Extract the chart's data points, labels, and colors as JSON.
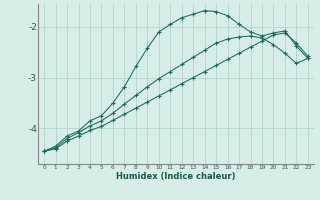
{
  "xlabel": "Humidex (Indice chaleur)",
  "ylabel": "",
  "bg_color": "#d7ede8",
  "grid_color": "#b8d8d0",
  "line_color": "#1a6b5a",
  "xlim": [
    -0.5,
    23.5
  ],
  "ylim": [
    -4.7,
    -1.55
  ],
  "yticks": [
    -4,
    -3,
    -2
  ],
  "xticks": [
    0,
    1,
    2,
    3,
    4,
    5,
    6,
    7,
    8,
    9,
    10,
    11,
    12,
    13,
    14,
    15,
    16,
    17,
    18,
    19,
    20,
    21,
    22,
    23
  ],
  "curve1_x": [
    0,
    1,
    2,
    3,
    4,
    5,
    6,
    7,
    8,
    9,
    10,
    11,
    12,
    13,
    14,
    15,
    16,
    17,
    18,
    19,
    20,
    21,
    22,
    23
  ],
  "curve1_y": [
    -4.45,
    -4.35,
    -4.15,
    -4.05,
    -3.85,
    -3.75,
    -3.5,
    -3.18,
    -2.78,
    -2.42,
    -2.1,
    -1.95,
    -1.82,
    -1.75,
    -1.68,
    -1.7,
    -1.78,
    -1.95,
    -2.1,
    -2.18,
    -2.12,
    -2.08,
    -2.38,
    -2.62
  ],
  "curve2_x": [
    0,
    1,
    2,
    3,
    4,
    5,
    6,
    7,
    8,
    9,
    10,
    11,
    12,
    13,
    14,
    15,
    16,
    17,
    18,
    19,
    20,
    21,
    22,
    23
  ],
  "curve2_y": [
    -4.45,
    -4.38,
    -4.2,
    -4.08,
    -3.95,
    -3.85,
    -3.7,
    -3.52,
    -3.35,
    -3.18,
    -3.02,
    -2.88,
    -2.74,
    -2.6,
    -2.46,
    -2.32,
    -2.24,
    -2.2,
    -2.18,
    -2.22,
    -2.35,
    -2.52,
    -2.72,
    -2.62
  ],
  "curve3_x": [
    0,
    1,
    2,
    3,
    4,
    5,
    6,
    7,
    8,
    9,
    10,
    11,
    12,
    13,
    14,
    15,
    16,
    17,
    18,
    19,
    20,
    21,
    22,
    23
  ],
  "curve3_y": [
    -4.45,
    -4.4,
    -4.25,
    -4.15,
    -4.04,
    -3.96,
    -3.84,
    -3.72,
    -3.6,
    -3.48,
    -3.36,
    -3.24,
    -3.12,
    -3.0,
    -2.88,
    -2.76,
    -2.64,
    -2.52,
    -2.4,
    -2.28,
    -2.16,
    -2.12,
    -2.32,
    -2.58
  ]
}
